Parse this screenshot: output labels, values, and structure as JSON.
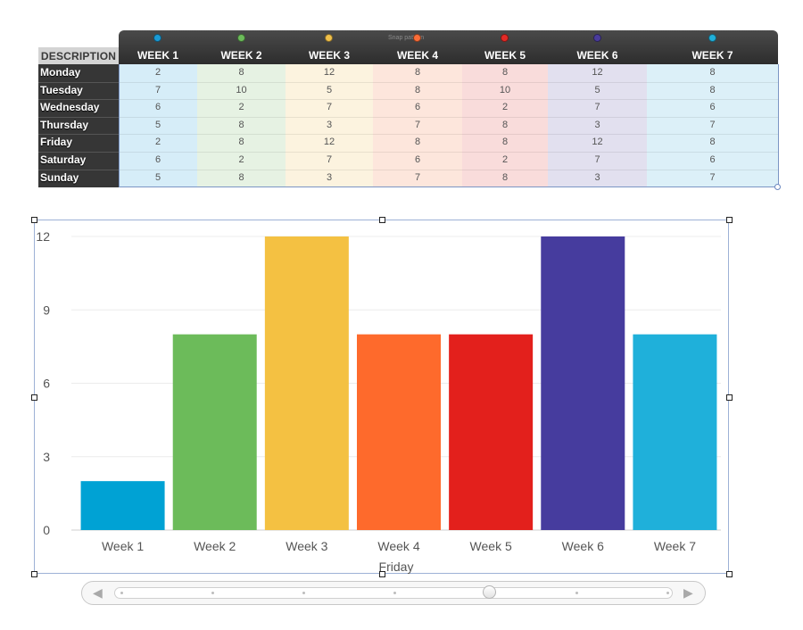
{
  "table": {
    "description_header": "DESCRIPTION",
    "snap_label": "Snap pattern",
    "weeks": [
      {
        "label": "WEEK 1",
        "color": "#1a9bd6",
        "tint": "#d6edf8"
      },
      {
        "label": "WEEK 2",
        "color": "#6cbb5a",
        "tint": "#e6f2e3"
      },
      {
        "label": "WEEK 3",
        "color": "#f0c04a",
        "tint": "#fcf3df"
      },
      {
        "label": "WEEK 4",
        "color": "#fb6d38",
        "tint": "#fde6dc"
      },
      {
        "label": "WEEK 5",
        "color": "#e32a26",
        "tint": "#f9dcdb"
      },
      {
        "label": "WEEK 6",
        "color": "#4a3c9c",
        "tint": "#e2e0ef"
      },
      {
        "label": "WEEK 7",
        "color": "#20afd9",
        "tint": "#dcf0f8"
      }
    ],
    "rows": [
      {
        "day": "Monday",
        "values": [
          "2",
          "8",
          "12",
          "8",
          "8",
          "12",
          "8"
        ]
      },
      {
        "day": "Tuesday",
        "values": [
          "7",
          "10",
          "5",
          "8",
          "10",
          "5",
          "8"
        ]
      },
      {
        "day": "Wednesday",
        "values": [
          "6",
          "2",
          "7",
          "6",
          "2",
          "7",
          "6"
        ]
      },
      {
        "day": "Thursday",
        "values": [
          "5",
          "8",
          "3",
          "7",
          "8",
          "3",
          "7"
        ]
      },
      {
        "day": "Friday",
        "values": [
          "2",
          "8",
          "12",
          "8",
          "8",
          "12",
          "8"
        ]
      },
      {
        "day": "Saturday",
        "values": [
          "6",
          "2",
          "7",
          "6",
          "2",
          "7",
          "6"
        ]
      },
      {
        "day": "Sunday",
        "values": [
          "5",
          "8",
          "3",
          "7",
          "8",
          "3",
          "7"
        ]
      }
    ]
  },
  "chart_data": {
    "type": "bar",
    "title": "",
    "xlabel": "Friday",
    "ylabel": "",
    "categories": [
      "Week 1",
      "Week 2",
      "Week 3",
      "Week 4",
      "Week 5",
      "Week 6",
      "Week 7"
    ],
    "values": [
      2,
      8,
      12,
      8,
      8,
      12,
      8
    ],
    "colors": [
      "#00a2d4",
      "#6cbb5a",
      "#f4c142",
      "#fe6a2c",
      "#e3201c",
      "#463c9e",
      "#1fb0da"
    ],
    "ylim": [
      0,
      12
    ],
    "yticks": [
      0,
      3,
      6,
      9,
      12
    ],
    "grid": true
  },
  "scrubber": {
    "left_arrow": "◀",
    "right_arrow": "▶",
    "position_fraction": 0.67
  }
}
